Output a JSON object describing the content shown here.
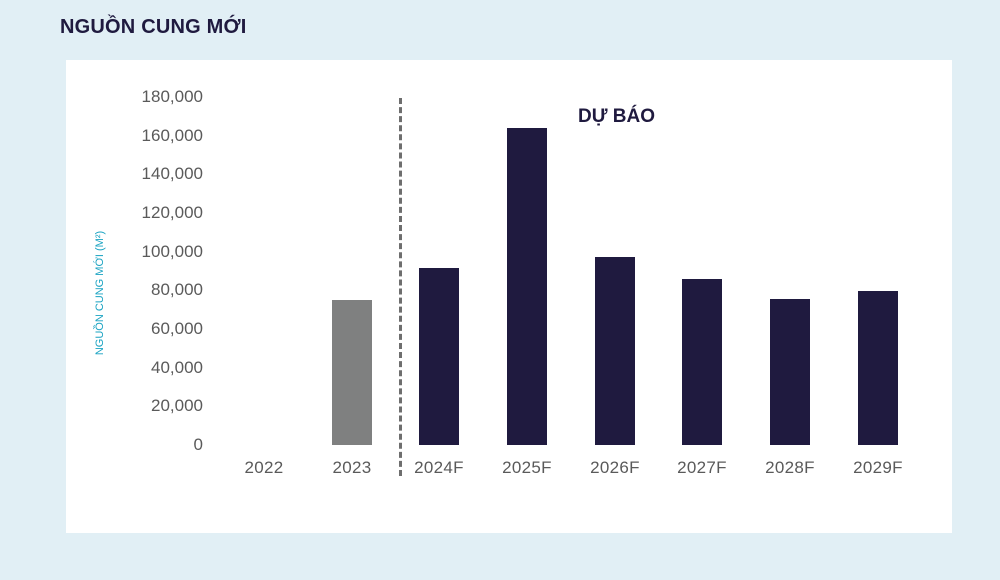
{
  "page": {
    "title": "NGUỒN CUNG MỚI"
  },
  "chart_data": {
    "type": "bar",
    "title": "NGUỒN CUNG MỚI",
    "xlabel": "",
    "ylabel": "NGUỒN CUNG MỚI (M²)",
    "categories": [
      "2022",
      "2023",
      "2024F",
      "2025F",
      "2026F",
      "2027F",
      "2028F",
      "2029F"
    ],
    "values": [
      0,
      75000,
      91500,
      164000,
      97000,
      86000,
      75500,
      79500
    ],
    "bar_colors": [
      "#7f8080",
      "#7f8080",
      "#1f1a3f",
      "#1f1a3f",
      "#1f1a3f",
      "#1f1a3f",
      "#1f1a3f",
      "#1f1a3f"
    ],
    "ylim": [
      0,
      180000
    ],
    "yticks": [
      "0",
      "20,000",
      "40,000",
      "60,000",
      "80,000",
      "100,000",
      "120,000",
      "140,000",
      "160,000",
      "180,000"
    ],
    "grid": false,
    "legend": null,
    "annotations": [
      {
        "text": "DỰ BÁO",
        "position": "forecast region, top",
        "divider": "dashed vertical line between 2023 and 2024F"
      }
    ],
    "colors": {
      "historical": "#7f8080",
      "forecast": "#1f1a3f",
      "ylabel": "#1aa3c2",
      "background": "#e1eff5"
    }
  }
}
